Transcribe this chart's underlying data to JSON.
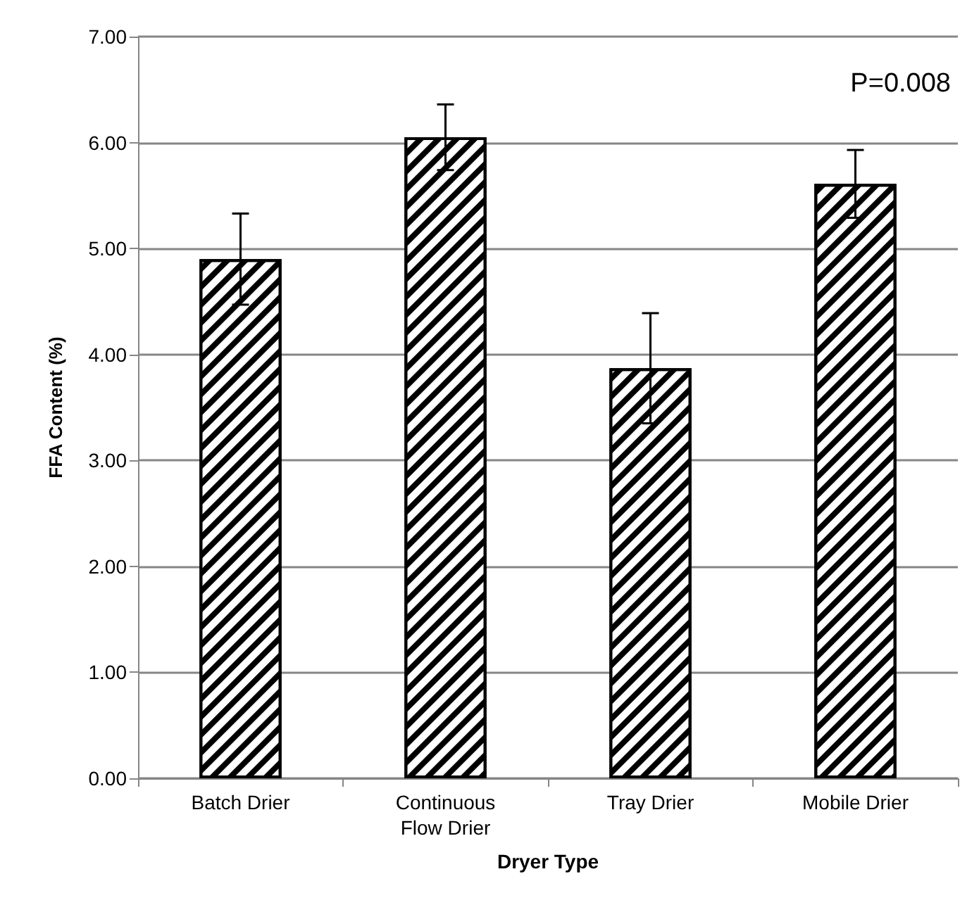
{
  "chart_data": {
    "type": "bar",
    "xlabel": "Dryer Type",
    "ylabel": "FFA Content (%)",
    "categories": [
      "Batch Drier",
      "Continuous\nFlow Drier",
      "Tray Drier",
      "Mobile Drier"
    ],
    "values": [
      4.9,
      6.05,
      3.87,
      5.61
    ],
    "errors": [
      0.43,
      0.31,
      0.52,
      0.32
    ],
    "color": "#000000",
    "ylim": [
      0,
      7
    ],
    "yticks": [
      {
        "value": 0,
        "label": "0.00"
      },
      {
        "value": 1,
        "label": "1.00"
      },
      {
        "value": 2,
        "label": "2.00"
      },
      {
        "value": 3,
        "label": "3.00"
      },
      {
        "value": 4,
        "label": "4.00"
      },
      {
        "value": 5,
        "label": "5.00"
      },
      {
        "value": 6,
        "label": "6.00"
      },
      {
        "value": 7,
        "label": "7.00"
      }
    ],
    "grid": "y",
    "annotations": [
      "P=0.008"
    ]
  }
}
